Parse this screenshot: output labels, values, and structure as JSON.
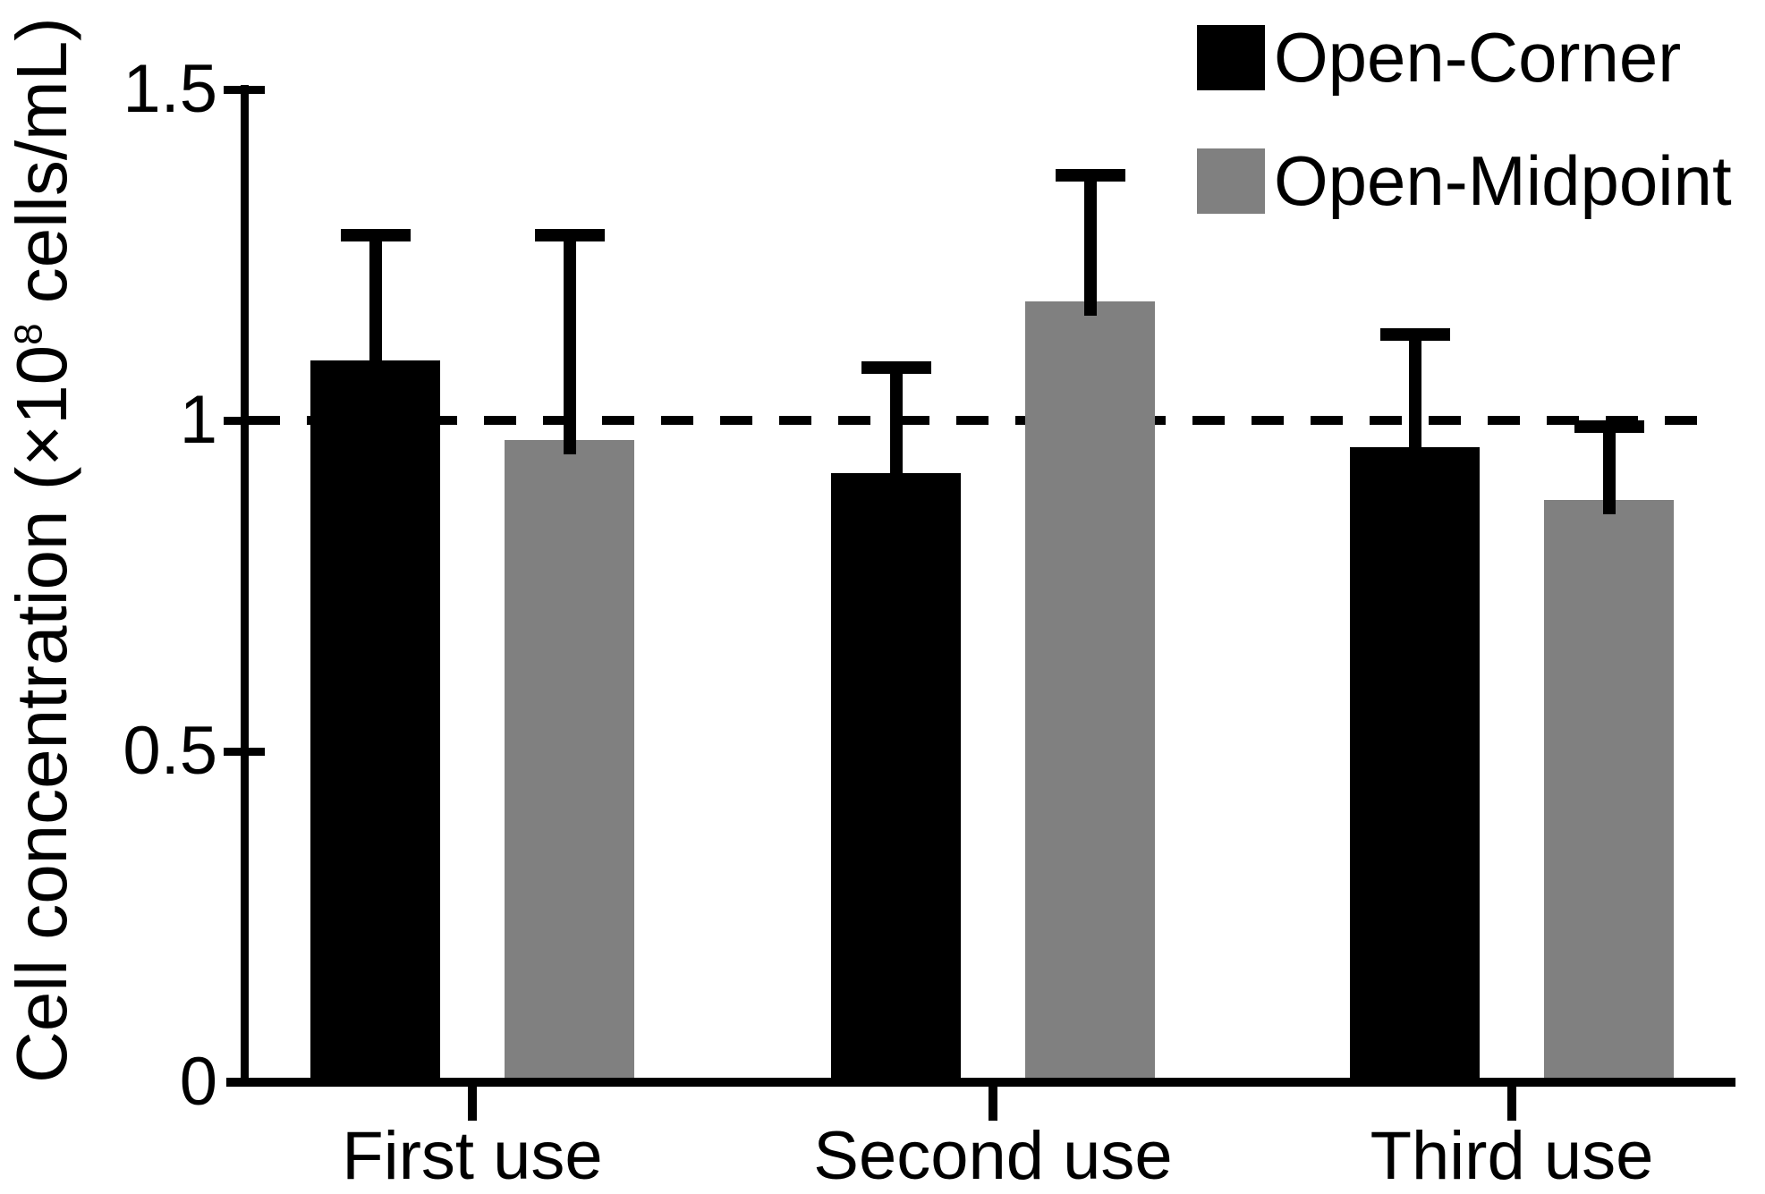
{
  "figure": {
    "background": "#ffffff",
    "text_color": "#000000"
  },
  "chart_data": {
    "type": "bar",
    "title": "",
    "categories": [
      "First use",
      "Second use",
      "Third use"
    ],
    "series": [
      {
        "name": "Open-Corner",
        "color": "#000000",
        "values": [
          1.09,
          0.92,
          0.96
        ],
        "errors_plus": [
          0.19,
          0.16,
          0.17
        ]
      },
      {
        "name": "Open-Midpoint",
        "color": "#808080",
        "values": [
          0.97,
          1.18,
          0.88
        ],
        "errors_plus": [
          0.31,
          0.19,
          0.11
        ]
      }
    ],
    "error_bars": "upper only, capped",
    "xlabel": "",
    "ylabel_parts": {
      "prefix": "Cell concentration (×10",
      "sup": "8",
      "suffix": " cells/mL)"
    },
    "ylim": [
      0,
      1.5
    ],
    "yticks": [
      {
        "value": 0,
        "label": "0"
      },
      {
        "value": 0.5,
        "label": "0.5"
      },
      {
        "value": 1,
        "label": "1"
      },
      {
        "value": 1.5,
        "label": "1.5"
      }
    ],
    "reference_line": {
      "value": 1.0,
      "style": "dashed",
      "color": "#000000"
    },
    "grid": false,
    "legend_position": "top-right"
  }
}
